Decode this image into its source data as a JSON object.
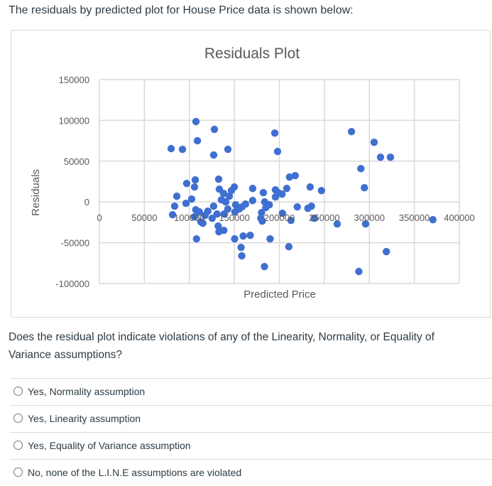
{
  "intro_text": "The residuals by predicted plot for House Price data is shown below:",
  "question_text": "Does the residual plot indicate violations of any of the Linearity, Normality, or Equality of Variance assumptions?",
  "options": [
    {
      "label": "Yes, Normality assumption",
      "selected": false
    },
    {
      "label": "Yes, Linearity assumption",
      "selected": false
    },
    {
      "label": "Yes, Equality of Variance assumption",
      "selected": false
    },
    {
      "label": "No, none of the L.I.N.E assumptions are violated",
      "selected": false
    }
  ],
  "colors": {
    "marker": "#3f6fd0",
    "grid": "#d9d9d9",
    "axis_text": "#595959",
    "title_text": "#595959"
  },
  "chart_data": {
    "type": "scatter",
    "title": "Residuals Plot",
    "xlabel": "Predicted Price",
    "ylabel": "Residuals",
    "xlim": [
      0,
      400000
    ],
    "ylim": [
      -100000,
      150000
    ],
    "x_ticks": [
      "0",
      "50000",
      "100000",
      "150000",
      "200000",
      "250000",
      "300000",
      "350000",
      "400000"
    ],
    "y_ticks": [
      "150000",
      "100000",
      "50000",
      "0",
      "-50000",
      "-100000"
    ],
    "grid": true,
    "legend": null,
    "series": [
      {
        "name": "Residuals",
        "points": [
          [
            79700,
            65400
          ],
          [
            92300,
            64500
          ],
          [
            107300,
            98500
          ],
          [
            108900,
            75000
          ],
          [
            127800,
            89000
          ],
          [
            127000,
            57500
          ],
          [
            142800,
            64500
          ],
          [
            194900,
            84400
          ],
          [
            198000,
            61800
          ],
          [
            280100,
            86200
          ],
          [
            305300,
            73100
          ],
          [
            312400,
            54800
          ],
          [
            323400,
            54800
          ],
          [
            290600,
            40800
          ],
          [
            294500,
            17400
          ],
          [
            318900,
            -60900
          ],
          [
            288300,
            -85300
          ],
          [
            370600,
            -21800
          ],
          [
            264300,
            -27000
          ],
          [
            295800,
            -27000
          ],
          [
            106500,
            27000
          ],
          [
            105700,
            18300
          ],
          [
            97000,
            22600
          ],
          [
            86000,
            7000
          ],
          [
            102500,
            3500
          ],
          [
            96200,
            -1700
          ],
          [
            83600,
            -5200
          ],
          [
            81300,
            -15700
          ],
          [
            132500,
            27900
          ],
          [
            133300,
            15700
          ],
          [
            138000,
            10500
          ],
          [
            140400,
            0
          ],
          [
            149900,
            18300
          ],
          [
            146700,
            13900
          ],
          [
            144300,
            7000
          ],
          [
            135600,
            2600
          ],
          [
            170300,
            16500
          ],
          [
            182200,
            11300
          ],
          [
            195600,
            14800
          ],
          [
            198700,
            11300
          ],
          [
            208200,
            16500
          ],
          [
            211300,
            30500
          ],
          [
            217600,
            32200
          ],
          [
            234200,
            18300
          ],
          [
            246800,
            13900
          ],
          [
            183700,
            0
          ],
          [
            170300,
            1700
          ],
          [
            162400,
            -2600
          ],
          [
            158500,
            -6100
          ],
          [
            151400,
            -3500
          ],
          [
            155300,
            -8700
          ],
          [
            150600,
            -12200
          ],
          [
            142700,
            -8700
          ],
          [
            126900,
            -5200
          ],
          [
            138700,
            -14800
          ],
          [
            130800,
            -14800
          ],
          [
            125300,
            -20000
          ],
          [
            117400,
            -16500
          ],
          [
            120500,
            -11300
          ],
          [
            111100,
            -12200
          ],
          [
            107100,
            -9600
          ],
          [
            105600,
            -18300
          ],
          [
            112700,
            -24400
          ],
          [
            115000,
            -26100
          ],
          [
            107900,
            -45300
          ],
          [
            132000,
            -29600
          ],
          [
            132800,
            -36600
          ],
          [
            138300,
            -34800
          ],
          [
            167600,
            -40900
          ],
          [
            159800,
            -41800
          ],
          [
            150300,
            -45300
          ],
          [
            157400,
            -55700
          ],
          [
            158200,
            -66100
          ],
          [
            189700,
            -45300
          ],
          [
            183400,
            -79300
          ],
          [
            210500,
            -54900
          ],
          [
            179400,
            -20000
          ],
          [
            181000,
            -23500
          ],
          [
            184900,
            -7000
          ],
          [
            188800,
            -3500
          ],
          [
            180200,
            -13100
          ],
          [
            203400,
            -13900
          ],
          [
            212900,
            -22600
          ],
          [
            219900,
            -6100
          ],
          [
            231700,
            -7800
          ],
          [
            235600,
            -5200
          ],
          [
            238800,
            -20000
          ],
          [
            203000,
            9600
          ],
          [
            195600,
            6100
          ]
        ]
      }
    ]
  }
}
